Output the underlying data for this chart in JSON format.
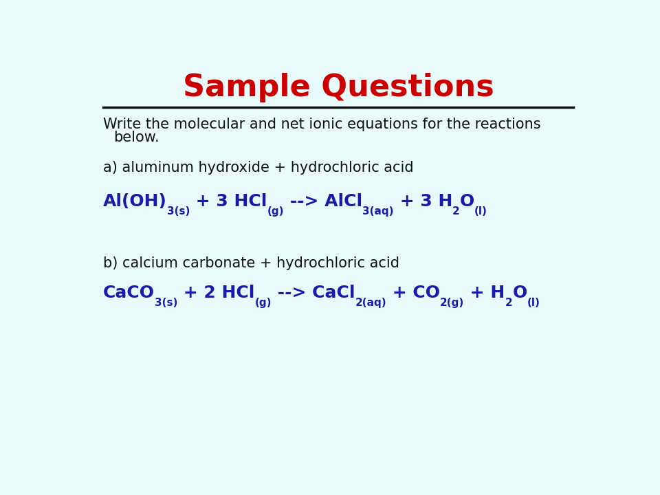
{
  "title": "Sample Questions",
  "title_color": "#cc0000",
  "title_fontsize": 32,
  "bg_color": "#e8fafa",
  "line_color": "#111111",
  "body_color": "#1a1aaa",
  "black_color": "#111111",
  "instruction_line1": "Write the molecular and net ionic equations for the reactions",
  "instruction_line2": "    below.",
  "label_a": "a) aluminum hydroxide + hydrochloric acid",
  "label_b": "b) calcium carbonate + hydrochloric acid",
  "fontsize_label": 15,
  "fontsize_eq": 18,
  "fontsize_sub": 11,
  "fontsize_instruction": 15
}
